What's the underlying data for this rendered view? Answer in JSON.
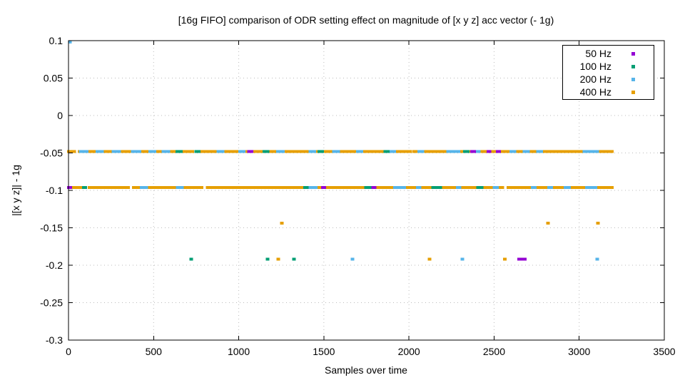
{
  "chart_data": {
    "type": "scatter",
    "title": "[16g FIFO] comparison of ODR setting effect on magnitude of [x y z] acc vector (- 1g)",
    "xlabel": "Samples over time",
    "ylabel": "|[x y z]| - 1g",
    "xlim": [
      0,
      3500
    ],
    "ylim": [
      -0.3,
      0.1
    ],
    "xticks": [
      "0",
      "500",
      "1000",
      "1500",
      "2000",
      "2500",
      "3000",
      "3500"
    ],
    "yticks": [
      "0.1",
      "0.05",
      "0",
      "-0.05",
      "-0.1",
      "-0.15",
      "-0.2",
      "-0.25",
      "-0.3"
    ],
    "grid": true,
    "legend": {
      "position": "top-right",
      "entries": [
        {
          "label": "50 Hz",
          "color": "#9400d3"
        },
        {
          "label": "100 Hz",
          "color": "#009e73"
        },
        {
          "label": "200 Hz",
          "color": "#56b4e9"
        },
        {
          "label": "400 Hz",
          "color": "#e69f00"
        }
      ]
    },
    "series": [
      {
        "name": "50 Hz",
        "color": "#9400d3",
        "segments": [
          [
            1058,
            1078,
            -0.048
          ],
          [
            2368,
            2386,
            -0.048
          ],
          [
            2464,
            2476,
            -0.048
          ],
          [
            2520,
            2532,
            -0.048
          ],
          [
            0,
            12,
            -0.096
          ],
          [
            1492,
            1505,
            -0.096
          ],
          [
            1788,
            1800,
            -0.096
          ],
          [
            2644,
            2682,
            -0.192
          ]
        ],
        "points": []
      },
      {
        "name": "100 Hz",
        "color": "#009e73",
        "segments": [
          [
            638,
            662,
            -0.048
          ],
          [
            748,
            768,
            -0.048
          ],
          [
            1148,
            1172,
            -0.048
          ],
          [
            1472,
            1492,
            -0.048
          ],
          [
            1858,
            1878,
            -0.048
          ],
          [
            2326,
            2348,
            -0.048
          ],
          [
            88,
            100,
            -0.096
          ],
          [
            1388,
            1402,
            -0.096
          ],
          [
            1745,
            1778,
            -0.096
          ],
          [
            2140,
            2185,
            -0.096
          ],
          [
            2403,
            2428,
            -0.096
          ]
        ],
        "points": [
          [
            721,
            -0.192
          ],
          [
            1169,
            -0.192
          ],
          [
            1324,
            -0.192
          ]
        ]
      },
      {
        "name": "200 Hz",
        "color": "#56b4e9",
        "segments": [
          [
            70,
            110,
            -0.048
          ],
          [
            168,
            200,
            -0.048
          ],
          [
            262,
            300,
            -0.048
          ],
          [
            375,
            420,
            -0.048
          ],
          [
            478,
            508,
            -0.048
          ],
          [
            556,
            588,
            -0.048
          ],
          [
            878,
            908,
            -0.048
          ],
          [
            1005,
            1032,
            -0.048
          ],
          [
            1228,
            1262,
            -0.048
          ],
          [
            1418,
            1446,
            -0.048
          ],
          [
            1558,
            1586,
            -0.048
          ],
          [
            1698,
            1722,
            -0.048
          ],
          [
            1888,
            1916,
            -0.048
          ],
          [
            2058,
            2082,
            -0.048
          ],
          [
            2228,
            2292,
            -0.048
          ],
          [
            2390,
            2412,
            -0.048
          ],
          [
            2598,
            2622,
            -0.048
          ],
          [
            2676,
            2702,
            -0.048
          ],
          [
            2756,
            2778,
            -0.048
          ],
          [
            3028,
            3108,
            -0.048
          ],
          [
            428,
            460,
            -0.096
          ],
          [
            640,
            668,
            -0.096
          ],
          [
            1390,
            1455,
            -0.096
          ],
          [
            1915,
            1975,
            -0.096
          ],
          [
            2050,
            2065,
            -0.096
          ],
          [
            2285,
            2300,
            -0.096
          ],
          [
            2500,
            2520,
            -0.096
          ],
          [
            2725,
            2742,
            -0.096
          ],
          [
            2822,
            2838,
            -0.096
          ],
          [
            2918,
            2942,
            -0.096
          ],
          [
            3044,
            3098,
            -0.096
          ]
        ],
        "points": [
          [
            8,
            0.098
          ],
          [
            1668,
            -0.192
          ],
          [
            2313,
            -0.192
          ],
          [
            3105,
            -0.192
          ]
        ]
      },
      {
        "name": "400 Hz",
        "color": "#e69f00",
        "segments": [
          [
            0,
            35,
            -0.048
          ],
          [
            62,
            730,
            -0.048
          ],
          [
            748,
            1145,
            -0.048
          ],
          [
            1162,
            2008,
            -0.048
          ],
          [
            2026,
            3193,
            -0.048
          ],
          [
            0,
            95,
            -0.096
          ],
          [
            122,
            352,
            -0.096
          ],
          [
            382,
            783,
            -0.096
          ],
          [
            815,
            1150,
            -0.096
          ],
          [
            1168,
            2550,
            -0.096
          ],
          [
            2583,
            3193,
            -0.096
          ]
        ],
        "points": [
          [
            1253,
            -0.144
          ],
          [
            2817,
            -0.144
          ],
          [
            3110,
            -0.144
          ],
          [
            1232,
            -0.192
          ],
          [
            2120,
            -0.192
          ],
          [
            2564,
            -0.192
          ]
        ]
      }
    ]
  }
}
